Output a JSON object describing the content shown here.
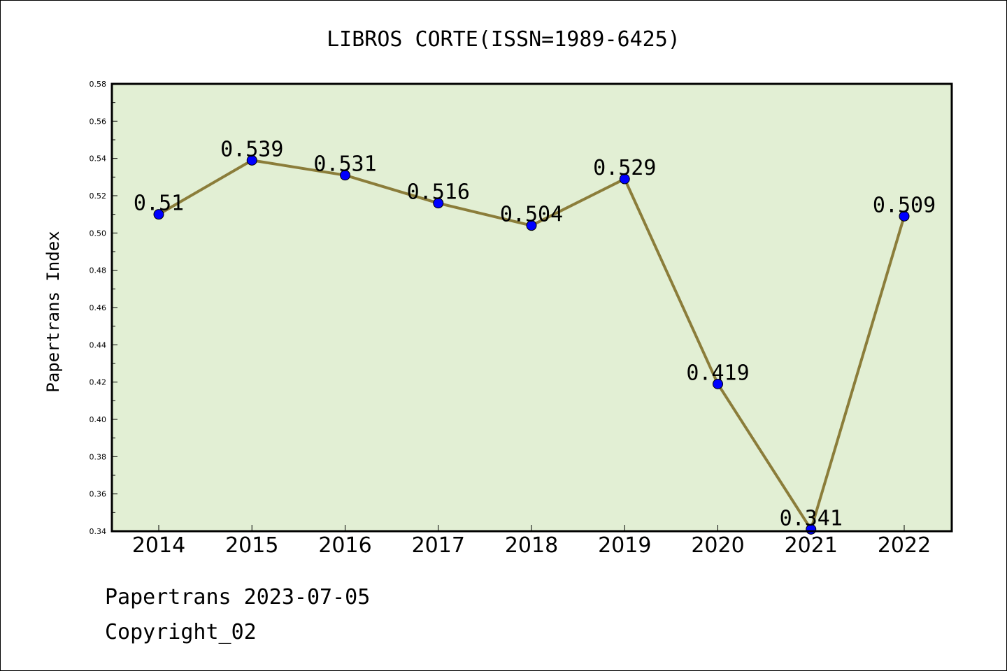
{
  "chart_data": {
    "type": "line",
    "title": "LIBROS CORTE(ISSN=1989-6425)",
    "xlabel": "",
    "ylabel": "Papertrans Index",
    "categories": [
      "2014",
      "2015",
      "2016",
      "2017",
      "2018",
      "2019",
      "2020",
      "2021",
      "2022"
    ],
    "values": [
      0.51,
      0.539,
      0.531,
      0.516,
      0.504,
      0.529,
      0.419,
      0.341,
      0.509
    ],
    "data_labels": [
      "0.51",
      "0.539",
      "0.531",
      "0.516",
      "0.504",
      "0.529",
      "0.419",
      "0.341",
      "0.509"
    ],
    "ylim": [
      0.34,
      0.58
    ],
    "yticks": [
      "0.34",
      "0.36",
      "0.38",
      "0.40",
      "0.42",
      "0.44",
      "0.46",
      "0.48",
      "0.50",
      "0.52",
      "0.54",
      "0.56",
      "0.58"
    ],
    "grid": false,
    "legend": "none",
    "colors": {
      "plot_background": "#e2efd4",
      "line": "#8b7d3a",
      "marker": "#0000ff",
      "axis": "#000000"
    }
  },
  "footer": {
    "line1": "Papertrans 2023-07-05",
    "line2": "Copyright_02"
  }
}
